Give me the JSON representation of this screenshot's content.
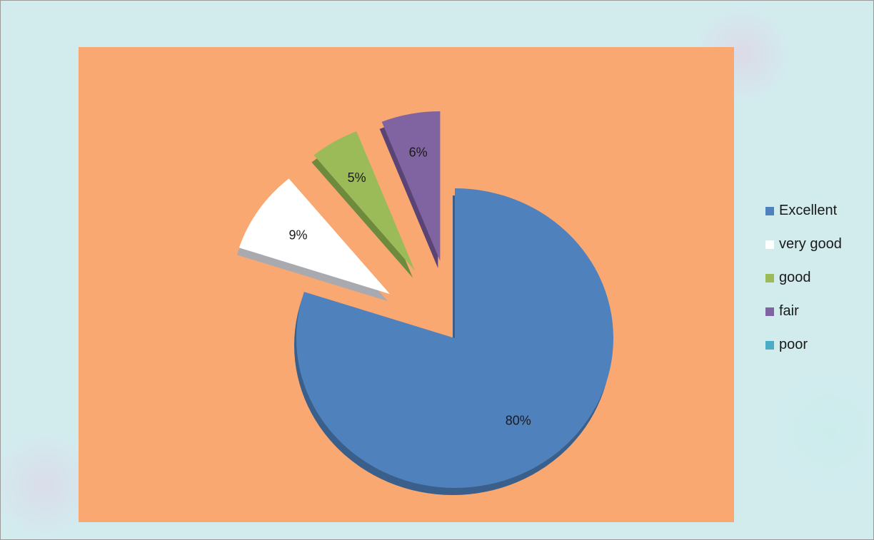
{
  "chart_data": {
    "type": "pie",
    "title": "",
    "slices": [
      {
        "name": "Excellent",
        "value": 80,
        "label": "80%",
        "color": "#4f81bd",
        "side_color": "#3a5f8a"
      },
      {
        "name": "very good",
        "value": 9,
        "label": "9%",
        "color": "#ffffff",
        "side_color": "#a9a9b0"
      },
      {
        "name": "good",
        "value": 5,
        "label": "5%",
        "color": "#9bbb59",
        "side_color": "#6e8a3c"
      },
      {
        "name": "fair",
        "value": 6,
        "label": "6%",
        "color": "#8064a2",
        "side_color": "#5a4476"
      },
      {
        "name": "poor",
        "value": 0,
        "label": "",
        "color": "#4bacc6",
        "side_color": "#357a8c"
      }
    ],
    "legend": {
      "position": "right",
      "entries": [
        "Excellent",
        "very good",
        "good",
        "fair",
        "poor"
      ]
    },
    "plot_background": "#f9a872",
    "chart_background": "#d2ecee"
  }
}
